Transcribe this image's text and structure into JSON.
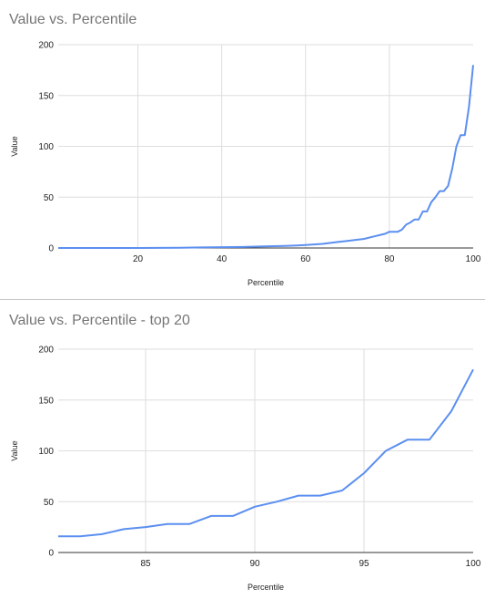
{
  "charts": [
    {
      "title": "Value vs. Percentile"
    },
    {
      "title": "Value vs. Percentile - top 20"
    }
  ],
  "colors": {
    "line": "#5b8ff0",
    "grid": "#dedede",
    "axis": "#333333"
  },
  "chart_data": [
    {
      "type": "line",
      "title": "Value vs. Percentile",
      "xlabel": "Percentile",
      "ylabel": "Value",
      "xlim": [
        1,
        100
      ],
      "ylim": [
        0,
        200
      ],
      "xticks": [
        20,
        40,
        60,
        80,
        100
      ],
      "yticks": [
        0,
        50,
        100,
        150,
        200
      ],
      "grid": true,
      "series": [
        {
          "x": [
            1,
            10,
            20,
            30,
            35,
            40,
            45,
            50,
            55,
            58,
            60,
            62,
            64,
            66,
            68,
            70,
            72,
            74,
            76,
            78,
            79,
            80,
            81,
            82,
            83,
            84,
            85,
            86,
            87,
            88,
            89,
            90,
            91,
            92,
            93,
            94,
            95,
            96,
            97,
            98,
            99,
            100
          ],
          "y": [
            0,
            0,
            0,
            0.3,
            0.5,
            0.8,
            1,
            1.5,
            2,
            2.5,
            3,
            3.5,
            4,
            5,
            6,
            7,
            8,
            9,
            11,
            13,
            14,
            16,
            16,
            16,
            18,
            23,
            25,
            28,
            28,
            36,
            36,
            45,
            50,
            56,
            56,
            61,
            78,
            100,
            111,
            111,
            139,
            180
          ]
        }
      ]
    },
    {
      "type": "line",
      "title": "Value vs. Percentile - top 20",
      "xlabel": "Percentile",
      "ylabel": "Value",
      "xlim": [
        81,
        100
      ],
      "ylim": [
        0,
        200
      ],
      "xticks": [
        85,
        90,
        95,
        100
      ],
      "yticks": [
        0,
        50,
        100,
        150,
        200
      ],
      "grid": true,
      "series": [
        {
          "x": [
            81,
            82,
            83,
            84,
            85,
            86,
            87,
            88,
            89,
            90,
            91,
            92,
            93,
            94,
            95,
            96,
            97,
            98,
            99,
            100
          ],
          "y": [
            16,
            16,
            18,
            23,
            25,
            28,
            28,
            36,
            36,
            45,
            50,
            56,
            56,
            61,
            78,
            100,
            111,
            111,
            139,
            180
          ]
        }
      ]
    }
  ]
}
